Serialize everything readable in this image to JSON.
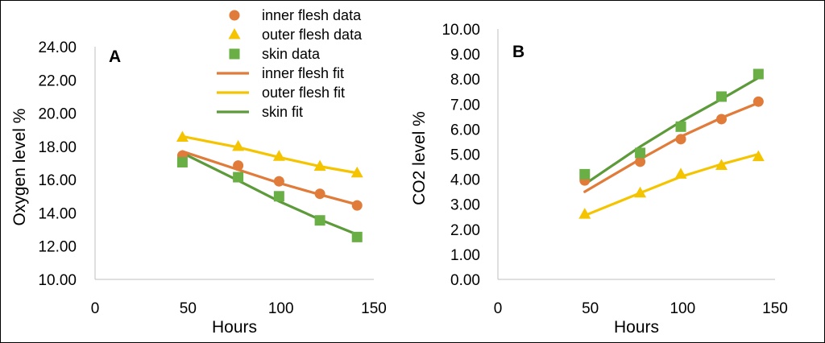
{
  "chart_data": [
    {
      "id": "A",
      "type": "scatter",
      "panel_label": "A",
      "xlabel": "Hours",
      "ylabel": "Oxygen level %",
      "xlim": [
        0,
        150
      ],
      "ylim": [
        10,
        24
      ],
      "x_ticks": [
        "0",
        "50",
        "100",
        "150"
      ],
      "y_ticks": [
        "10.00",
        "12.00",
        "14.00",
        "16.00",
        "18.00",
        "20.00",
        "22.00",
        "24.00"
      ],
      "series": [
        {
          "name": "inner flesh data",
          "kind": "points",
          "marker": "circle",
          "color": "#E07B39",
          "x": [
            47,
            77,
            99,
            121,
            141
          ],
          "y": [
            17.45,
            16.85,
            15.9,
            15.15,
            14.45
          ]
        },
        {
          "name": "outer flesh data",
          "kind": "points",
          "marker": "triangle",
          "color": "#F5C400",
          "x": [
            47,
            77,
            99,
            121,
            141
          ],
          "y": [
            18.55,
            18.0,
            17.4,
            16.8,
            16.4
          ]
        },
        {
          "name": "skin data",
          "kind": "points",
          "marker": "square",
          "color": "#6AAF45",
          "x": [
            47,
            77,
            99,
            121,
            141
          ],
          "y": [
            17.05,
            16.15,
            15.0,
            13.55,
            12.55
          ]
        },
        {
          "name": "inner flesh fit",
          "kind": "line",
          "color": "#E07B39",
          "x": [
            47,
            77,
            99,
            121,
            141
          ],
          "y": [
            17.7,
            16.6,
            15.8,
            15.1,
            14.5
          ]
        },
        {
          "name": "outer flesh fit",
          "kind": "line",
          "color": "#F5C400",
          "x": [
            47,
            77,
            99,
            121,
            141
          ],
          "y": [
            18.6,
            17.95,
            17.35,
            16.8,
            16.4
          ]
        },
        {
          "name": "skin fit",
          "kind": "line",
          "color": "#5C9A3A",
          "x": [
            47,
            77,
            99,
            121,
            141
          ],
          "y": [
            17.6,
            15.95,
            14.7,
            13.6,
            12.7
          ]
        }
      ]
    },
    {
      "id": "B",
      "type": "scatter",
      "panel_label": "B",
      "xlabel": "Hours",
      "ylabel": "CO2 level %",
      "xlim": [
        0,
        150
      ],
      "ylim": [
        0,
        10
      ],
      "x_ticks": [
        "0",
        "50",
        "100",
        "150"
      ],
      "y_ticks": [
        "0.00",
        "1.00",
        "2.00",
        "3.00",
        "4.00",
        "5.00",
        "6.00",
        "7.00",
        "8.00",
        "9.00",
        "10.00"
      ],
      "series": [
        {
          "name": "inner flesh data",
          "kind": "points",
          "marker": "circle",
          "color": "#E07B39",
          "x": [
            47,
            77,
            99,
            121,
            141
          ],
          "y": [
            3.95,
            4.7,
            5.6,
            6.4,
            7.1
          ]
        },
        {
          "name": "outer flesh data",
          "kind": "points",
          "marker": "triangle",
          "color": "#F5C400",
          "x": [
            47,
            77,
            99,
            121,
            141
          ],
          "y": [
            2.6,
            3.45,
            4.2,
            4.55,
            4.9
          ]
        },
        {
          "name": "skin data",
          "kind": "points",
          "marker": "square",
          "color": "#6AAF45",
          "x": [
            47,
            77,
            99,
            121,
            141
          ],
          "y": [
            4.2,
            5.05,
            6.1,
            7.3,
            8.2
          ]
        },
        {
          "name": "inner flesh fit",
          "kind": "line",
          "color": "#E07B39",
          "x": [
            47,
            77,
            99,
            121,
            141
          ],
          "y": [
            3.5,
            4.8,
            5.7,
            6.45,
            7.05
          ]
        },
        {
          "name": "outer flesh fit",
          "kind": "line",
          "color": "#F5C400",
          "x": [
            47,
            77,
            99,
            121,
            141
          ],
          "y": [
            2.55,
            3.45,
            4.1,
            4.6,
            5.0
          ]
        },
        {
          "name": "skin fit",
          "kind": "line",
          "color": "#5C9A3A",
          "x": [
            47,
            77,
            99,
            121,
            141
          ],
          "y": [
            3.8,
            5.3,
            6.3,
            7.2,
            8.05
          ]
        }
      ]
    }
  ],
  "legend": {
    "placement": "top-left of panel B",
    "items": [
      {
        "label": "inner flesh data",
        "marker": "circle",
        "color": "#E07B39"
      },
      {
        "label": "outer flesh data",
        "marker": "triangle",
        "color": "#F5C400"
      },
      {
        "label": "skin data",
        "marker": "square",
        "color": "#6AAF45"
      },
      {
        "label": "inner flesh fit",
        "marker": "line",
        "color": "#E07B39"
      },
      {
        "label": "outer flesh fit",
        "marker": "line",
        "color": "#F5C400"
      },
      {
        "label": "skin fit",
        "marker": "line",
        "color": "#5C9A3A"
      }
    ]
  }
}
